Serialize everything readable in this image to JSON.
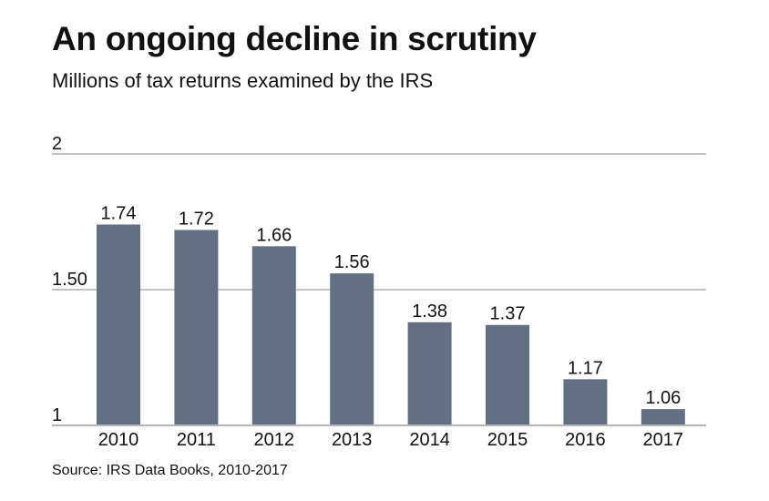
{
  "chart_data": {
    "type": "bar",
    "title": "An ongoing decline in scrutiny",
    "subtitle": "Millions of tax returns examined by the IRS",
    "source": "Source: IRS Data Books, 2010-2017",
    "categories": [
      "2010",
      "2011",
      "2012",
      "2013",
      "2014",
      "2015",
      "2016",
      "2017"
    ],
    "values": [
      1.74,
      1.72,
      1.66,
      1.56,
      1.38,
      1.37,
      1.17,
      1.06
    ],
    "data_labels": [
      "1.74",
      "1.72",
      "1.66",
      "1.56",
      "1.38",
      "1.37",
      "1.17",
      "1.06"
    ],
    "ylim": [
      1,
      2
    ],
    "yticks": [
      {
        "value": 1,
        "label": "1"
      },
      {
        "value": 1.5,
        "label": "1.50"
      },
      {
        "value": 2,
        "label": "2"
      }
    ],
    "xlabel": "",
    "ylabel": "",
    "grid": true,
    "colors": {
      "bar": "#637083",
      "grid": "#8a8a8a",
      "baseline": "#b5b5b5"
    }
  }
}
